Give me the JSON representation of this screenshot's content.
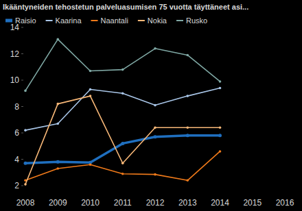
{
  "chart_data": {
    "type": "line",
    "title": "Ikääntyneiden tehostetun palveluasumisen 75 vuotta täyttäneet asi...",
    "categories": [
      "2008",
      "2009",
      "2010",
      "2011",
      "2012",
      "2013",
      "2014",
      "2015",
      "2016"
    ],
    "series": [
      {
        "name": "Raisio",
        "color": "#1f6fbf",
        "values": [
          3.7,
          3.8,
          3.75,
          5.2,
          5.7,
          5.8,
          5.8,
          null,
          null
        ]
      },
      {
        "name": "Kaarina",
        "color": "#a9c6e8",
        "values": [
          6.2,
          6.7,
          9.3,
          9.0,
          8.1,
          8.8,
          9.4,
          null,
          null
        ]
      },
      {
        "name": "Naantali",
        "color": "#f07a1a",
        "values": [
          2.4,
          3.3,
          3.6,
          2.9,
          2.85,
          2.4,
          4.6,
          null,
          null
        ]
      },
      {
        "name": "Nokia",
        "color": "#f8b878",
        "values": [
          2.1,
          8.2,
          8.8,
          3.7,
          6.4,
          6.4,
          6.4,
          null,
          null
        ]
      },
      {
        "name": "Rusko",
        "color": "#7fa8a4",
        "values": [
          9.2,
          13.1,
          10.7,
          10.8,
          12.4,
          11.9,
          9.9,
          null,
          null
        ]
      }
    ],
    "ylim": [
      2,
      14
    ],
    "yticks": [
      2,
      4,
      6,
      8,
      10,
      12,
      14
    ],
    "grid": false,
    "legend": "top",
    "marker": "circle"
  }
}
